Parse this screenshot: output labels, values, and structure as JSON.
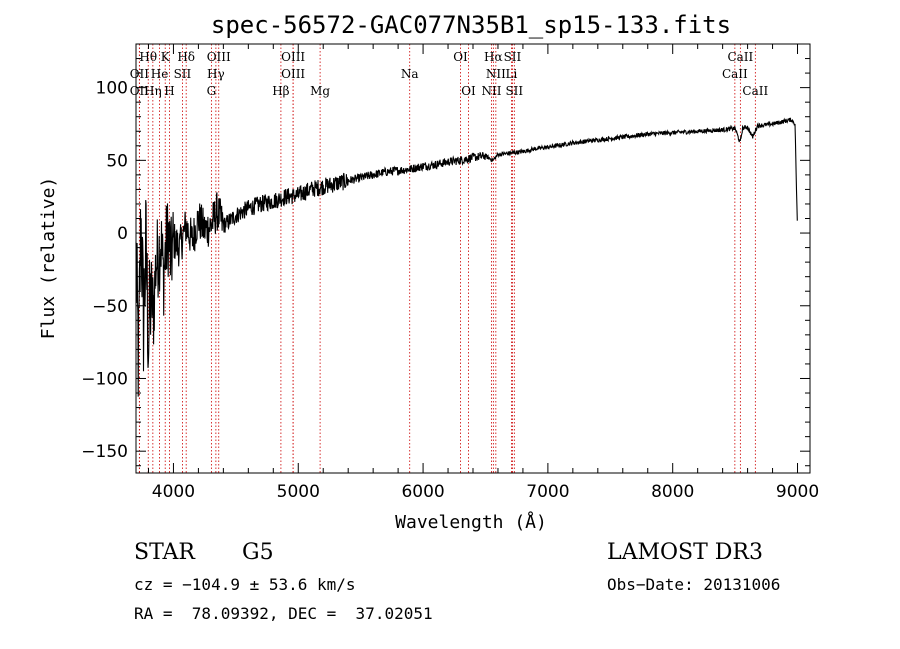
{
  "chart_data": {
    "type": "line",
    "title": "spec-56572-GAC077N35B1_sp15-133.fits",
    "xlabel": "Wavelength (Å)",
    "ylabel": "Flux (relative)",
    "xlim": [
      3700,
      9100
    ],
    "ylim": [
      -165,
      130
    ],
    "xticks": [
      4000,
      5000,
      6000,
      7000,
      8000,
      9000
    ],
    "yticks": [
      -150,
      -100,
      -50,
      0,
      50,
      100
    ],
    "xtick_labels": [
      "4000",
      "5000",
      "6000",
      "7000",
      "8000",
      "9000"
    ],
    "ytick_labels": [
      "−150",
      "−100",
      "−50",
      "0",
      "50",
      "100"
    ],
    "series": [
      {
        "name": "flux",
        "x": [
          3700,
          3720,
          3740,
          3760,
          3780,
          3800,
          3820,
          3840,
          3860,
          3880,
          3900,
          3920,
          3940,
          3960,
          3980,
          4000,
          4050,
          4100,
          4150,
          4200,
          4250,
          4300,
          4350,
          4400,
          4500,
          4600,
          4700,
          4800,
          4900,
          5000,
          5100,
          5200,
          5300,
          5400,
          5500,
          5600,
          5700,
          5800,
          5900,
          6000,
          6100,
          6200,
          6300,
          6400,
          6500,
          6560,
          6600,
          6700,
          6800,
          6900,
          7000,
          7200,
          7400,
          7600,
          7800,
          8000,
          8200,
          8400,
          8500,
          8540,
          8560,
          8600,
          8640,
          8680,
          8700,
          8800,
          8900,
          8950,
          8980,
          9000
        ],
        "y": [
          -20,
          -90,
          10,
          -60,
          -10,
          -75,
          -40,
          -55,
          -20,
          -15,
          -5,
          -30,
          -10,
          0,
          -20,
          -5,
          -10,
          5,
          -5,
          10,
          2,
          5,
          15,
          5,
          12,
          17,
          20,
          22,
          25,
          26,
          30,
          32,
          34,
          36,
          38,
          40,
          42,
          43,
          44,
          46,
          47,
          49,
          50,
          52,
          53,
          50,
          54,
          55,
          56,
          58,
          59,
          62,
          64,
          66,
          68,
          69,
          70,
          71,
          72,
          62,
          72,
          73,
          66,
          74,
          74,
          75,
          77,
          78,
          75,
          0
        ]
      }
    ],
    "spectral_lines": [
      {
        "label": "Hθ",
        "wavelength": 3798,
        "row": 1
      },
      {
        "label": "K",
        "wavelength": 3934,
        "row": 1
      },
      {
        "label": "Hδ",
        "wavelength": 4102,
        "row": 1
      },
      {
        "label": "OIII",
        "wavelength": 4363,
        "row": 1
      },
      {
        "label": "OIII",
        "wavelength": 4959,
        "row": 1
      },
      {
        "label": "OI",
        "wavelength": 6300,
        "row": 1
      },
      {
        "label": "Hα",
        "wavelength": 6563,
        "row": 1
      },
      {
        "label": "SII",
        "wavelength": 6716,
        "row": 1
      },
      {
        "label": "CaII",
        "wavelength": 8542,
        "row": 1
      },
      {
        "label": "OII",
        "wavelength": 3727,
        "row": 2
      },
      {
        "label": "He",
        "wavelength": 3889,
        "row": 2
      },
      {
        "label": "SII",
        "wavelength": 4072,
        "row": 2
      },
      {
        "label": "Hγ",
        "wavelength": 4340,
        "row": 2
      },
      {
        "label": "OIII",
        "wavelength": 4959,
        "row": 2
      },
      {
        "label": "Na",
        "wavelength": 5893,
        "row": 2
      },
      {
        "label": "NII",
        "wavelength": 6583,
        "row": 2
      },
      {
        "label": "Li",
        "wavelength": 6708,
        "row": 2
      },
      {
        "label": "CaII",
        "wavelength": 8498,
        "row": 2
      },
      {
        "label": "OII",
        "wavelength": 3727,
        "row": 3
      },
      {
        "label": "Hη",
        "wavelength": 3835,
        "row": 3
      },
      {
        "label": "H",
        "wavelength": 3968,
        "row": 3
      },
      {
        "label": "G",
        "wavelength": 4304,
        "row": 3
      },
      {
        "label": "Hβ",
        "wavelength": 4861,
        "row": 3
      },
      {
        "label": "Mg",
        "wavelength": 5175,
        "row": 3
      },
      {
        "label": "OI",
        "wavelength": 6364,
        "row": 3
      },
      {
        "label": "NII",
        "wavelength": 6548,
        "row": 3
      },
      {
        "label": "SII",
        "wavelength": 6731,
        "row": 3
      },
      {
        "label": "CaII",
        "wavelength": 8662,
        "row": 3
      }
    ],
    "line_color": "#000000",
    "marker_color": "#cc0000"
  },
  "info": {
    "class": "STAR",
    "subclass": "G5",
    "survey": "LAMOST DR3",
    "redshift": "cz = −104.9 ± 53.6 km/s",
    "obs_date": "Obs−Date: 20131006",
    "coords": "RA =  78.09392, DEC =  37.02051"
  }
}
